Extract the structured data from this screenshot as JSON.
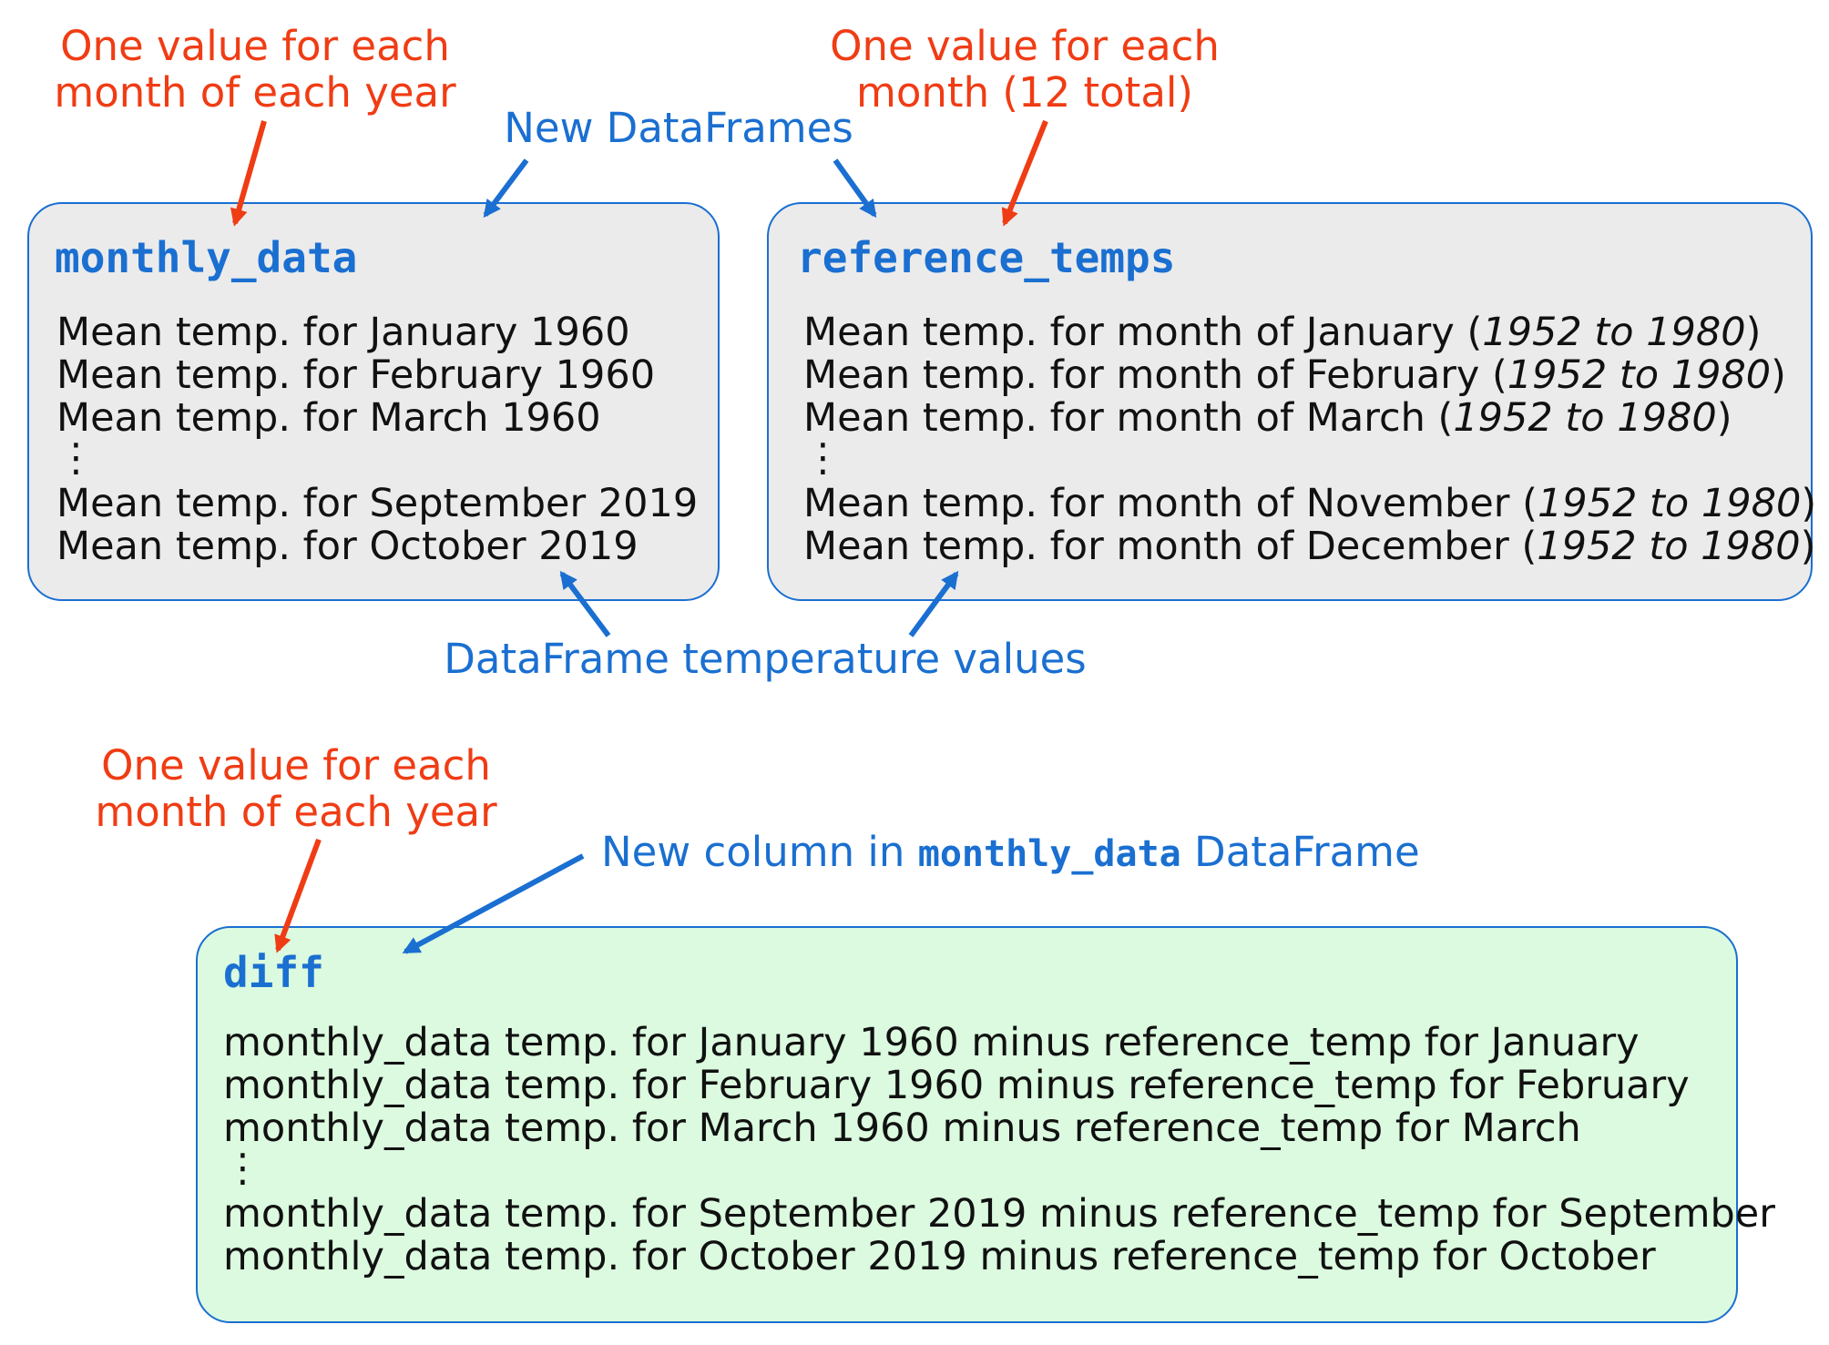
{
  "annotations": {
    "top_left_red": [
      "One value for each",
      "month of each year"
    ],
    "top_right_red": [
      "One value for each",
      "month (12 total)"
    ],
    "new_dataframes": "New DataFrames",
    "temperature_values": "DataFrame temperature values",
    "bottom_red": [
      "One value for each",
      "month of each year"
    ],
    "new_column": {
      "before": "New column in ",
      "code": "monthly_data",
      "after": " DataFrame"
    }
  },
  "monthly_data": {
    "title": "monthly_data",
    "lines": [
      "Mean temp. for January 1960",
      "Mean temp. for February 1960",
      "Mean temp. for March 1960",
      "⋮",
      "Mean temp. for September 2019",
      "Mean temp. for October 2019"
    ]
  },
  "reference_temps": {
    "title": "reference_temps",
    "rows": [
      {
        "text": "Mean temp. for month of January (",
        "range": "1952 to 1980",
        "close": ")"
      },
      {
        "text": "Mean temp. for month of February (",
        "range": "1952 to 1980",
        "close": ")"
      },
      {
        "text": "Mean temp. for month of March (",
        "range": "1952 to 1980",
        "close": ")"
      },
      {
        "text": "⋮",
        "range": "",
        "close": ""
      },
      {
        "text": "Mean temp. for month of November (",
        "range": "1952 to 1980",
        "close": ")"
      },
      {
        "text": "Mean temp. for month of December (",
        "range": "1952 to 1980",
        "close": ")"
      }
    ]
  },
  "diff": {
    "title": "diff",
    "lines": [
      "monthly_data temp. for January 1960 minus reference_temp for January",
      "monthly_data temp. for February 1960 minus reference_temp for February",
      "monthly_data temp. for March 1960 minus reference_temp for March",
      "⋮",
      "monthly_data temp. for September 2019 minus reference_temp for September",
      "monthly_data temp. for October 2019 minus reference_temp for October"
    ]
  },
  "colors": {
    "annotation_red": "#f03c14",
    "annotation_blue": "#1a6fd1",
    "box_gray": "#ebebeb",
    "box_green": "#dbfadf"
  }
}
